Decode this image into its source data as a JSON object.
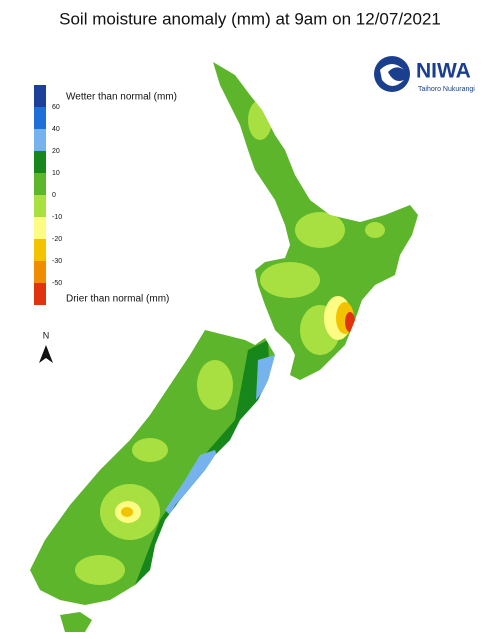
{
  "title": "Soil moisture anomaly (mm) at 9am on 12/07/2021",
  "logo": {
    "name": "NIWA",
    "subtitle": "Taihoro Nukurangi"
  },
  "north_label": "N",
  "legend": {
    "top_label": "Wetter than normal (mm)",
    "bottom_label": "Drier than normal (mm)",
    "colors": [
      "#1c3f9a",
      "#1f6fd8",
      "#76b2ee",
      "#17871b",
      "#5cb52a",
      "#a9e041",
      "#fdfd84",
      "#f4c300",
      "#f08c00",
      "#e0340f"
    ],
    "ticks": [
      60,
      40,
      20,
      10,
      0,
      -10,
      -20,
      -30,
      -50
    ]
  }
}
